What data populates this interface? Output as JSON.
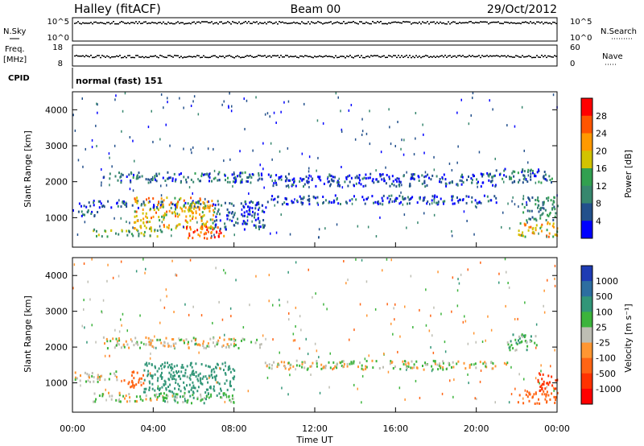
{
  "header": {
    "station": "Halley (fitACF)",
    "beam": "Beam 00",
    "date": "29/Oct/2012"
  },
  "panels": {
    "nsky_label": "N.Sky",
    "nsky_ticks": [
      "10^5",
      "10^0"
    ],
    "nsearch_label": "N.Search",
    "nsearch_ticks": [
      "10^5",
      "10^0"
    ],
    "freq_label": "Freq.",
    "freq_unit": "[MHz]",
    "freq_ticks": [
      "18",
      "8"
    ],
    "nave_label": "Nave",
    "nave_ticks": [
      "60",
      "0"
    ],
    "cpid_label": "CPID",
    "cpid_text": "normal (fast) 151"
  },
  "axes": {
    "y_label": "Slant Range [km]",
    "y_ticks": [
      "4000",
      "3000",
      "2000",
      "1000"
    ],
    "y_tick_values": [
      4000,
      3000,
      2000,
      1000
    ],
    "y_range": [
      180,
      4500
    ],
    "x_label": "Time UT",
    "x_ticks": [
      "00:00",
      "04:00",
      "08:00",
      "12:00",
      "16:00",
      "20:00",
      "00:00"
    ],
    "x_range_hours": [
      0,
      24
    ]
  },
  "colorbars": {
    "power": {
      "label": "Power [dB]",
      "ticks": [
        "28",
        "24",
        "20",
        "16",
        "12",
        "8",
        "4"
      ],
      "colors": [
        "#ff0000",
        "#ff5500",
        "#ff9900",
        "#d2c300",
        "#32a050",
        "#37876e",
        "#23508c",
        "#0000ff"
      ]
    },
    "velocity": {
      "label": "Velocity [m s⁻¹]",
      "ticks": [
        "1000",
        "500",
        "100",
        "25",
        "-25",
        "-100",
        "-500",
        "-1000"
      ],
      "colors": [
        "#1e3cb4",
        "#2d6ea0",
        "#329678",
        "#3cb43c",
        "#bebeb4",
        "#ff9632",
        "#ff6414",
        "#ff3200",
        "#ff0000"
      ]
    }
  },
  "chart_data": [
    {
      "type": "heatmap",
      "title": "Power",
      "xlabel": "Time UT",
      "ylabel": "Slant Range [km]",
      "xlim": [
        0,
        24
      ],
      "ylim": [
        180,
        4500
      ],
      "color_scale": [
        0,
        32
      ],
      "regions": [
        {
          "t0": 0.0,
          "t1": 1.3,
          "r0": 1050,
          "r1": 1250,
          "level": 6
        },
        {
          "t0": 0.3,
          "t1": 9.6,
          "r0": 1300,
          "r1": 1500,
          "level": 5
        },
        {
          "t0": 1.0,
          "t1": 4.5,
          "r0": 500,
          "r1": 700,
          "level": 14
        },
        {
          "t0": 3.0,
          "t1": 7.0,
          "r0": 700,
          "r1": 1600,
          "level": 20
        },
        {
          "t0": 5.5,
          "t1": 7.5,
          "r0": 450,
          "r1": 800,
          "level": 26
        },
        {
          "t0": 7.0,
          "t1": 9.5,
          "r0": 700,
          "r1": 1300,
          "level": 6
        },
        {
          "t0": 1.5,
          "t1": 9.5,
          "r0": 2000,
          "r1": 2300,
          "level": 7
        },
        {
          "t0": 9.6,
          "t1": 21.0,
          "r0": 1400,
          "r1": 1650,
          "level": 5
        },
        {
          "t0": 9.6,
          "t1": 21.0,
          "r0": 1900,
          "r1": 2250,
          "level": 4
        },
        {
          "t0": 20.5,
          "t1": 23.8,
          "r0": 2000,
          "r1": 2400,
          "level": 8
        },
        {
          "t0": 22.0,
          "t1": 24.0,
          "r0": 500,
          "r1": 900,
          "level": 20
        },
        {
          "t0": 22.2,
          "t1": 24.0,
          "r0": 950,
          "r1": 1600,
          "level": 10
        }
      ]
    },
    {
      "type": "heatmap",
      "title": "Velocity",
      "xlabel": "Time UT",
      "ylabel": "Slant Range [km]",
      "xlim": [
        0,
        24
      ],
      "ylim": [
        180,
        4500
      ],
      "color_scale": [
        -1000,
        1000
      ],
      "regions": [
        {
          "t0": 0.0,
          "t1": 2.2,
          "r0": 1050,
          "r1": 1350,
          "velocity": 0
        },
        {
          "t0": 1.0,
          "t1": 4.5,
          "r0": 500,
          "r1": 750,
          "velocity": 0
        },
        {
          "t0": 2.5,
          "t1": 3.5,
          "r0": 900,
          "r1": 1350,
          "velocity": -300
        },
        {
          "t0": 3.5,
          "t1": 8.0,
          "r0": 750,
          "r1": 1600,
          "velocity": 250
        },
        {
          "t0": 4.0,
          "t1": 8.0,
          "r0": 450,
          "r1": 750,
          "velocity": 60
        },
        {
          "t0": 9.5,
          "t1": 21.5,
          "r0": 1400,
          "r1": 1650,
          "velocity": 0
        },
        {
          "t0": 1.5,
          "t1": 9.5,
          "r0": 2000,
          "r1": 2300,
          "velocity": 0
        },
        {
          "t0": 21.5,
          "t1": 23.0,
          "r0": 1950,
          "r1": 2400,
          "velocity": 60
        },
        {
          "t0": 22.0,
          "t1": 24.0,
          "r0": 450,
          "r1": 800,
          "velocity": -300
        },
        {
          "t0": 23.0,
          "t1": 24.0,
          "r0": 800,
          "r1": 1300,
          "velocity": -700
        }
      ]
    }
  ]
}
